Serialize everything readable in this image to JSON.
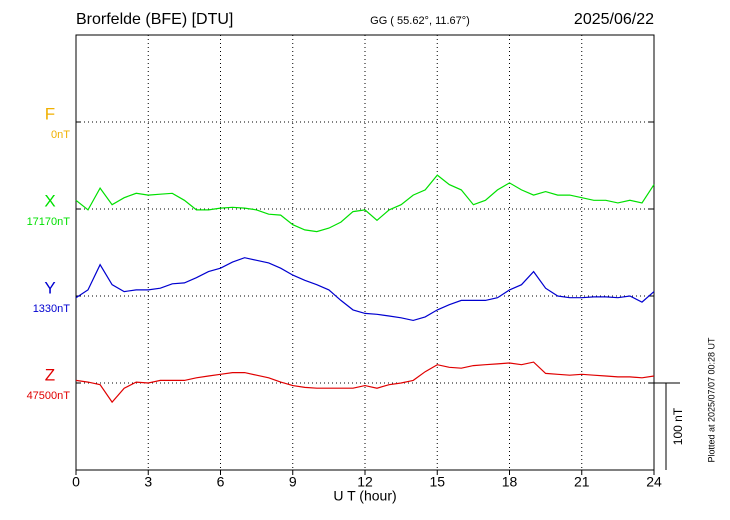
{
  "chart_data": {
    "type": "line",
    "title": "Brorfelde (BFE)  [DTU]",
    "subtitle": "GG ( 55.62°,  11.67°)",
    "date": "2025/06/22",
    "xlabel": "U T (hour)",
    "note": "Plotted at 2025/07/07 00:28 UT",
    "scale_bar": {
      "value": 100,
      "label": "100 nT"
    },
    "xlim": [
      0,
      24
    ],
    "xticks": [
      0,
      3,
      6,
      9,
      12,
      15,
      18,
      21,
      24
    ],
    "grid": true,
    "x": [
      0,
      0.5,
      1,
      1.5,
      2,
      2.5,
      3,
      3.5,
      4,
      4.5,
      5,
      5.5,
      6,
      6.5,
      7,
      7.5,
      8,
      8.5,
      9,
      9.5,
      10,
      10.5,
      11,
      11.5,
      12,
      12.5,
      13,
      13.5,
      14,
      14.5,
      15,
      15.5,
      16,
      16.5,
      17,
      17.5,
      18,
      18.5,
      19,
      19.5,
      20,
      20.5,
      21,
      21.5,
      22,
      22.5,
      23,
      23.5,
      24
    ],
    "series": [
      {
        "name": "F",
        "color": "#f0b000",
        "baseline": {
          "value": 0,
          "label": "0nT"
        }
      },
      {
        "name": "X",
        "color": "#00e000",
        "baseline": {
          "value": 17170,
          "label": "17170nT"
        },
        "values": [
          17180,
          17169,
          17194,
          17175,
          17183,
          17188,
          17186,
          17187,
          17188,
          17180,
          17169,
          17169,
          17171,
          17172,
          17171,
          17169,
          17164,
          17163,
          17152,
          17146,
          17144,
          17148,
          17155,
          17167,
          17169,
          17157,
          17169,
          17175,
          17186,
          17192,
          17209,
          17198,
          17192,
          17175,
          17180,
          17192,
          17200,
          17192,
          17186,
          17190,
          17186,
          17186,
          17183,
          17180,
          17180,
          17177,
          17180,
          17177,
          17198
        ]
      },
      {
        "name": "Y",
        "color": "#0000d0",
        "baseline": {
          "value": 1330,
          "label": "1330nT"
        },
        "values": [
          1328,
          1337,
          1366,
          1343,
          1335,
          1337,
          1337,
          1339,
          1344,
          1345,
          1351,
          1358,
          1362,
          1369,
          1374,
          1371,
          1368,
          1362,
          1354,
          1348,
          1343,
          1337,
          1325,
          1314,
          1310,
          1309,
          1307,
          1305,
          1302,
          1306,
          1314,
          1320,
          1325,
          1325,
          1325,
          1328,
          1337,
          1343,
          1358,
          1339,
          1330,
          1328,
          1328,
          1329,
          1329,
          1328,
          1330,
          1323,
          1335
        ]
      },
      {
        "name": "Z",
        "color": "#e00000",
        "baseline": {
          "value": 47500,
          "label": "47500nT"
        },
        "values": [
          47503,
          47501,
          47498,
          47478,
          47494,
          47501,
          47500,
          47503,
          47503,
          47503,
          47506,
          47508,
          47510,
          47512,
          47512,
          47509,
          47506,
          47501,
          47497,
          47495,
          47494,
          47494,
          47494,
          47494,
          47497,
          47494,
          47498,
          47500,
          47503,
          47513,
          47521,
          47518,
          47517,
          47520,
          47521,
          47522,
          47523,
          47521,
          47524,
          47511,
          47510,
          47509,
          47510,
          47509,
          47508,
          47507,
          47507,
          47506,
          47508
        ]
      }
    ]
  }
}
